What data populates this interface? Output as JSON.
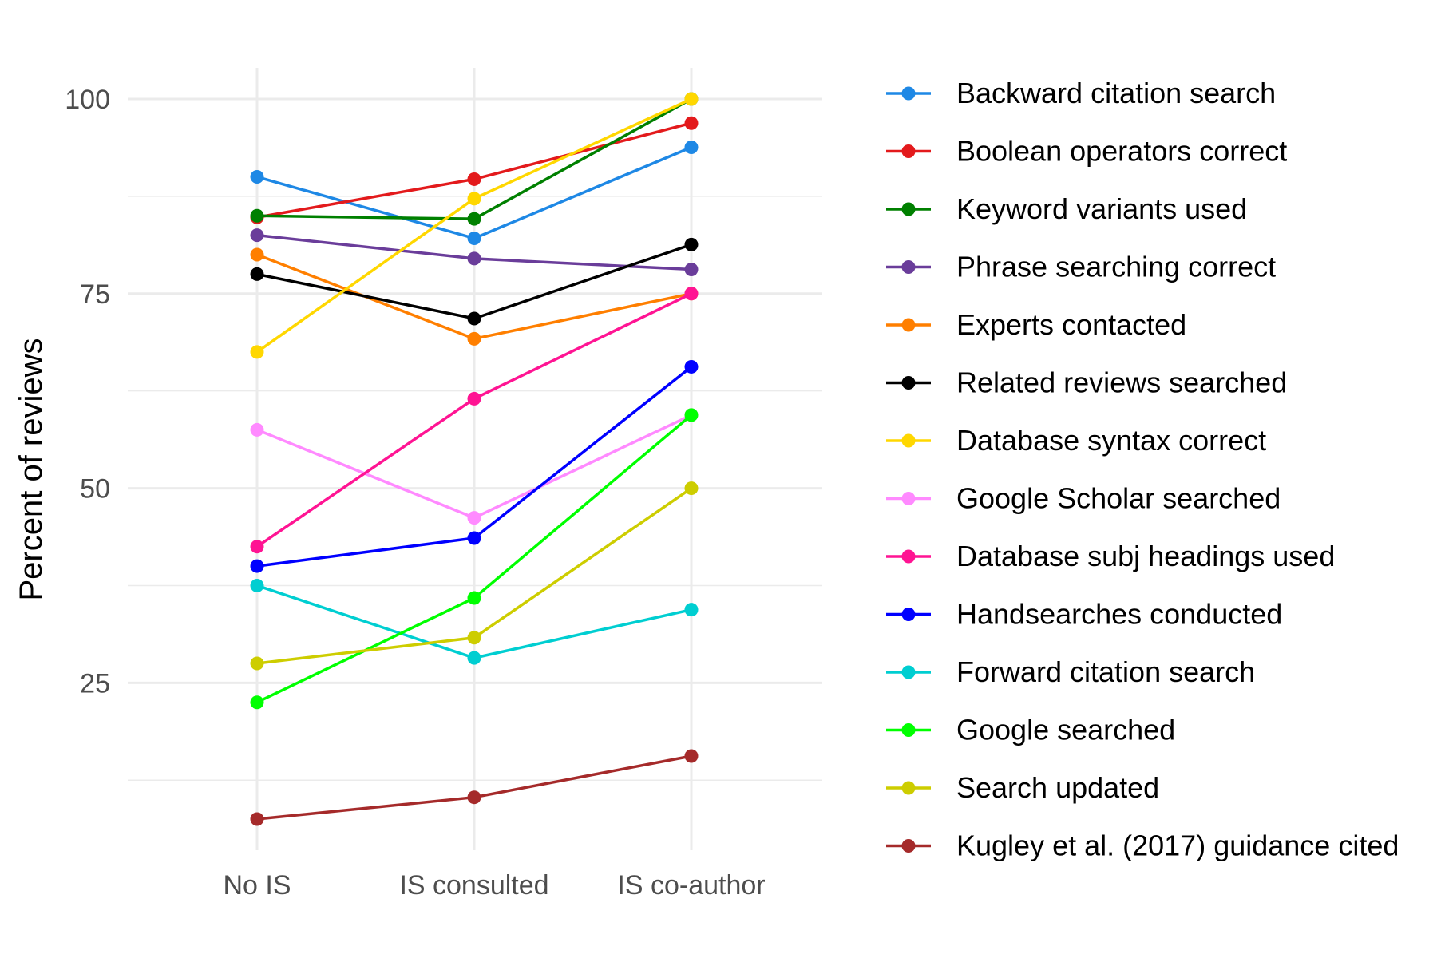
{
  "chart_data": {
    "type": "line",
    "title": "",
    "xlabel": "",
    "ylabel": "Percent of reviews",
    "categories": [
      "No IS",
      "IS consulted",
      "IS co-author"
    ],
    "ylim": [
      3.5,
      104
    ],
    "y_ticks": [
      25,
      50,
      75,
      100
    ],
    "grid": true,
    "legend_position": "right",
    "series": [
      {
        "name": "Backward citation search",
        "color": "#1E88E5",
        "values": [
          90.0,
          82.1,
          93.8
        ]
      },
      {
        "name": "Boolean operators correct",
        "color": "#E31A1C",
        "values": [
          84.8,
          89.7,
          96.9
        ]
      },
      {
        "name": "Keyword variants used",
        "color": "#008000",
        "values": [
          85.0,
          84.6,
          100.0
        ]
      },
      {
        "name": "Phrase searching correct",
        "color": "#6A3D9A",
        "values": [
          82.5,
          79.5,
          78.1
        ]
      },
      {
        "name": "Experts contacted",
        "color": "#FF7F00",
        "values": [
          80.0,
          69.2,
          75.0
        ]
      },
      {
        "name": "Related reviews searched",
        "color": "#000000",
        "values": [
          77.5,
          71.8,
          81.3
        ]
      },
      {
        "name": "Database syntax correct",
        "color": "#FFD700",
        "values": [
          67.5,
          87.2,
          100.0
        ]
      },
      {
        "name": "Google Scholar searched",
        "color": "#FF8AFF",
        "values": [
          57.5,
          46.2,
          59.4
        ]
      },
      {
        "name": "Database subj headings used",
        "color": "#FF1493",
        "values": [
          42.5,
          61.5,
          75.0
        ]
      },
      {
        "name": "Handsearches conducted",
        "color": "#0000FF",
        "values": [
          40.0,
          43.6,
          65.6
        ]
      },
      {
        "name": "Forward citation search",
        "color": "#00CED1",
        "values": [
          37.5,
          28.2,
          34.4
        ]
      },
      {
        "name": "Google searched",
        "color": "#00FF00",
        "values": [
          22.5,
          35.9,
          59.4
        ]
      },
      {
        "name": "Search updated",
        "color": "#CDCD00",
        "values": [
          27.5,
          30.8,
          50.0
        ]
      },
      {
        "name": "Kugley et al. (2017) guidance cited",
        "color": "#A52A2A",
        "values": [
          7.5,
          10.3,
          15.6
        ]
      }
    ]
  }
}
